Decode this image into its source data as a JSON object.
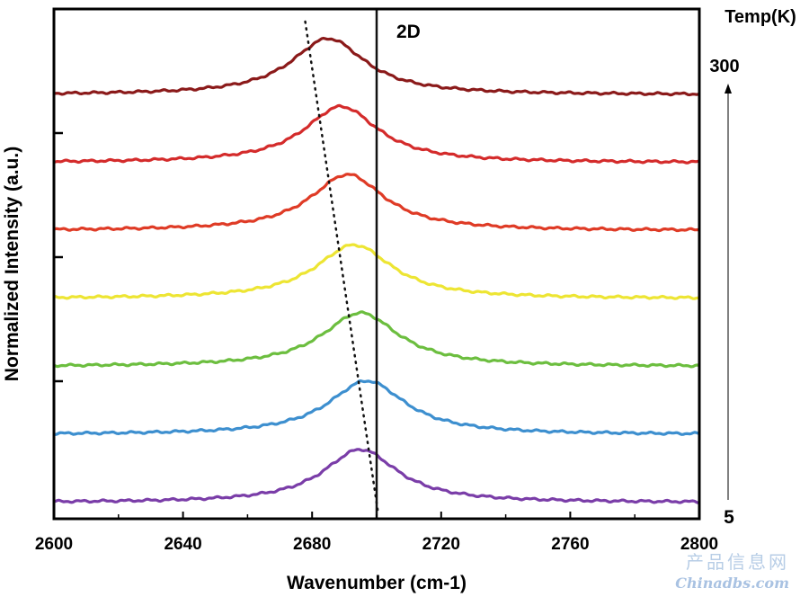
{
  "chart_data": {
    "type": "line",
    "title": "",
    "xlabel": "Wavenumber (cm-1)",
    "ylabel": "Normalized Intensity (a.u.)",
    "xlim": [
      2600,
      2800
    ],
    "x_ticks": [
      2600,
      2640,
      2680,
      2720,
      2760,
      2800
    ],
    "y_ticks_labeled": false,
    "grid": false,
    "legend": "none",
    "annotations": {
      "band_label": "2D",
      "temp_header": "Temp(K)",
      "temp_high": "300",
      "temp_low": "5",
      "vertical_line_x": 2700,
      "trend_line": {
        "x_start": 2684,
        "x_end": 2699,
        "style": "dotted"
      }
    },
    "series": [
      {
        "color": "#8b1a1a",
        "offset": 6,
        "peak_x": 2685,
        "peak_height": 0.92,
        "width": 14
      },
      {
        "color": "#d42b2b",
        "offset": 5,
        "peak_x": 2689,
        "peak_height": 0.92,
        "width": 14
      },
      {
        "color": "#df3b26",
        "offset": 4,
        "peak_x": 2691,
        "peak_height": 0.92,
        "width": 14
      },
      {
        "color": "#ede533",
        "offset": 3,
        "peak_x": 2693,
        "peak_height": 0.88,
        "width": 14.5
      },
      {
        "color": "#6cbe3f",
        "offset": 2,
        "peak_x": 2695,
        "peak_height": 0.88,
        "width": 14.5
      },
      {
        "color": "#3d8fcf",
        "offset": 1,
        "peak_x": 2697,
        "peak_height": 0.88,
        "width": 14.5
      },
      {
        "color": "#7a3da8",
        "offset": 0,
        "peak_x": 2695,
        "peak_height": 0.87,
        "width": 14
      }
    ]
  },
  "watermark": {
    "line1": "产品信息网",
    "line2": "Chinadbs.com"
  }
}
